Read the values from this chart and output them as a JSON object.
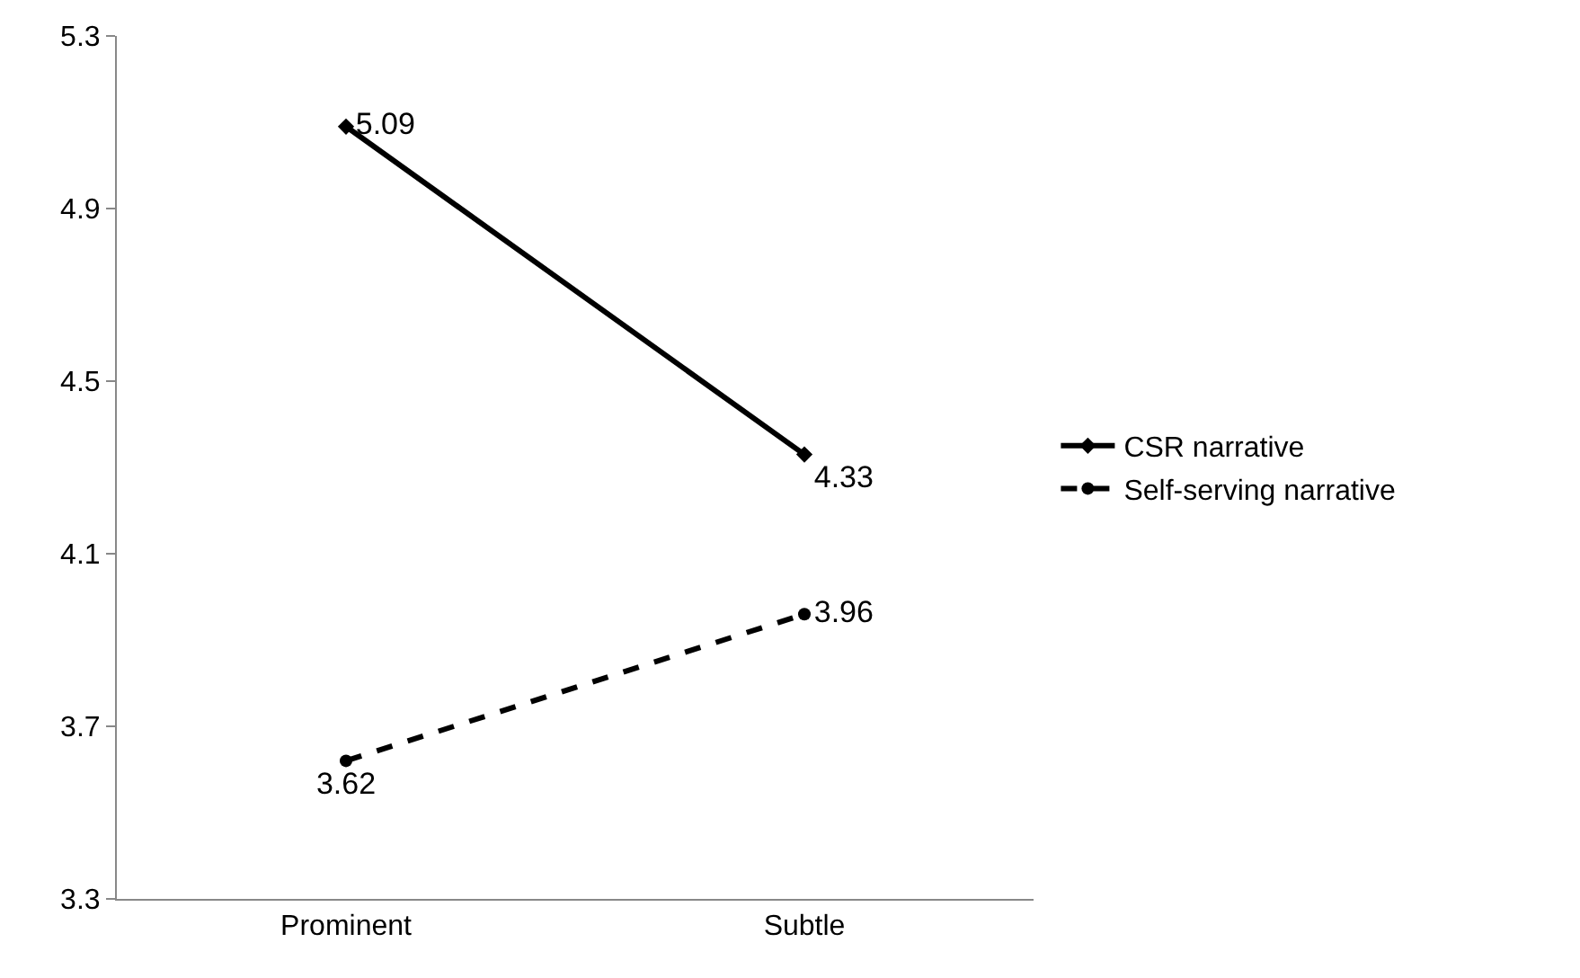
{
  "chart_data": {
    "type": "line",
    "categories": [
      "Prominent",
      "Subtle"
    ],
    "series": [
      {
        "name": "CSR narrative",
        "color": "#000000",
        "values": [
          5.09,
          4.33
        ],
        "marker": "diamond",
        "line_style": "solid"
      },
      {
        "name": "Self-serving narrative",
        "color": "#000000",
        "values": [
          3.62,
          3.96
        ],
        "marker": "circle",
        "line_style": "dashed"
      }
    ],
    "ylim": [
      3.3,
      5.3
    ],
    "yticks": [
      3.3,
      3.7,
      4.1,
      4.5,
      4.9,
      5.3
    ],
    "grid": false,
    "legend": "right",
    "data_labels": true
  }
}
